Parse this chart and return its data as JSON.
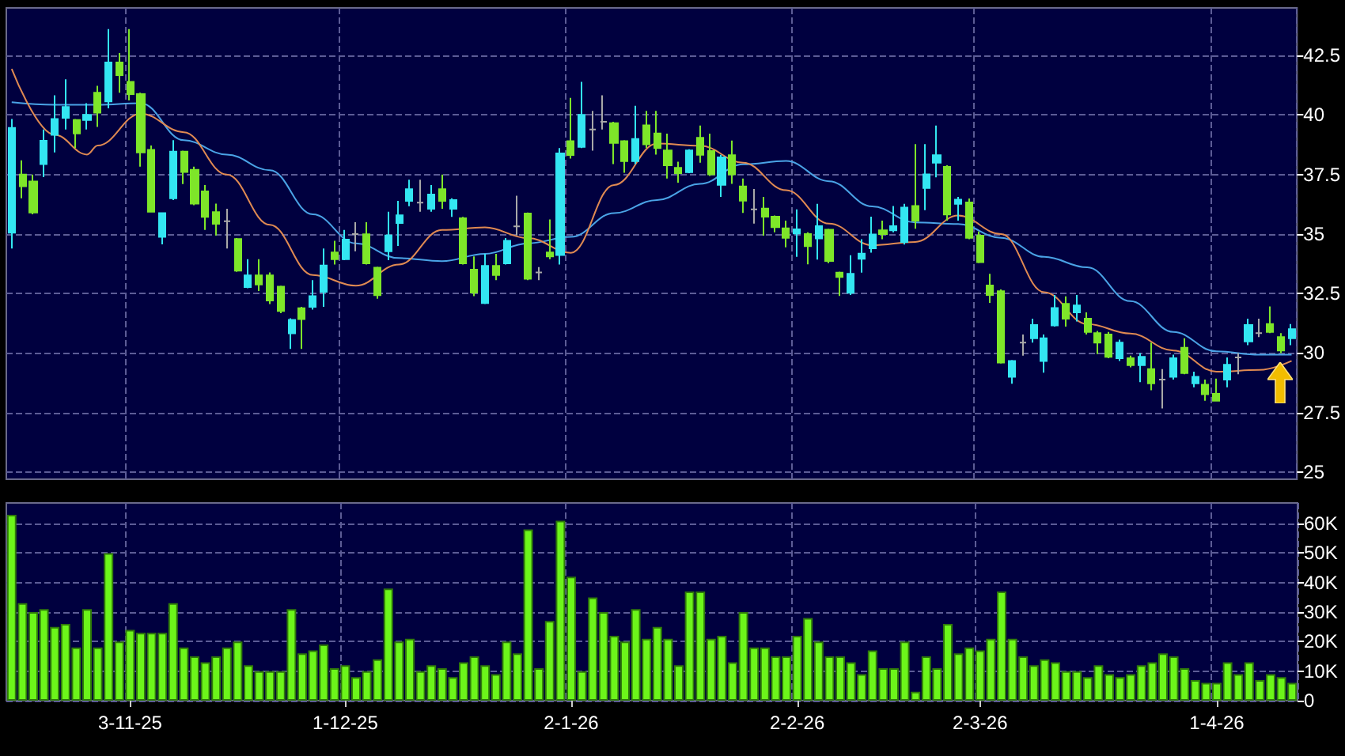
{
  "chart_data": [
    {
      "type": "candlestick",
      "tick_labels": "y",
      "grid": true,
      "categories": [
        null,
        null,
        null,
        null,
        null,
        null,
        null,
        null,
        null,
        null,
        null,
        null,
        null,
        null,
        null,
        null,
        null,
        null,
        null,
        null,
        null,
        null,
        null,
        null,
        null,
        null,
        null,
        null,
        null,
        null,
        null,
        null,
        null,
        null,
        null,
        null,
        null,
        null,
        null,
        null,
        null,
        null,
        null,
        null,
        null,
        null,
        null,
        null,
        null,
        null,
        null,
        null,
        null,
        null,
        null,
        null,
        null,
        null,
        null,
        null,
        null,
        null,
        null,
        null,
        null,
        null,
        null,
        null,
        null,
        null,
        null,
        null,
        null,
        null,
        null,
        null,
        null,
        null,
        null,
        null,
        null,
        null,
        null,
        null,
        null,
        null,
        null,
        null,
        null,
        null,
        null,
        null,
        null,
        null,
        null,
        null,
        null,
        null,
        null,
        null,
        null,
        null,
        null,
        null,
        null,
        null,
        null,
        null,
        null,
        null,
        null,
        null,
        null,
        null,
        null,
        null,
        null,
        null,
        null,
        null
      ],
      "ylim": [
        24.7,
        44.5
      ],
      "yticks": [
        25,
        27.5,
        30,
        32.5,
        35,
        37.5,
        40,
        42.5
      ],
      "series": [
        {
          "type": "line",
          "color": "#4aa3e6",
          "values": [
            40.54,
            null,
            null,
            null,
            40.43,
            null,
            null,
            null,
            40.43,
            null,
            null,
            null,
            40.5,
            null,
            null,
            null,
            38.94,
            null,
            null,
            null,
            38.34,
            null,
            null,
            null,
            37.68,
            null,
            null,
            null,
            35.83,
            null,
            null,
            null,
            34.61,
            null,
            null,
            null,
            33.99,
            null,
            null,
            null,
            33.86,
            null,
            null,
            null,
            34.17,
            null,
            null,
            null,
            34.61,
            null,
            null,
            null,
            34.88,
            null,
            null,
            null,
            35.88,
            null,
            null,
            null,
            36.43,
            null,
            null,
            null,
            37.11,
            null,
            null,
            null,
            37.93,
            null,
            null,
            null,
            38.07,
            null,
            null,
            null,
            37.22,
            null,
            null,
            null,
            36.16,
            null,
            null,
            null,
            35.49,
            null,
            null,
            null,
            35.42,
            null,
            null,
            null,
            34.84,
            null,
            null,
            null,
            34.04,
            null,
            null,
            null,
            33.6,
            null,
            null,
            null,
            32.18,
            null,
            null,
            null,
            30.89,
            null,
            null,
            null,
            30.07,
            null,
            null,
            null,
            29.93,
            null,
            null,
            29.93
          ]
        },
        {
          "type": "line",
          "color": "#e08a52",
          "values": [
            41.94,
            null,
            null,
            null,
            39.17,
            null,
            null,
            38.34,
            38.72,
            null,
            null,
            null,
            40.06,
            null,
            null,
            null,
            39.28,
            null,
            null,
            null,
            37.5,
            null,
            null,
            null,
            35.39,
            null,
            null,
            null,
            33.28,
            null,
            null,
            null,
            32.83,
            null,
            null,
            null,
            33.72,
            null,
            null,
            null,
            35.17,
            null,
            null,
            null,
            35.28,
            null,
            null,
            null,
            34.83,
            null,
            null,
            null,
            34.21,
            null,
            null,
            null,
            37.06,
            null,
            null,
            null,
            38.8,
            null,
            null,
            null,
            38.71,
            null,
            null,
            null,
            38.0,
            null,
            null,
            null,
            36.84,
            null,
            null,
            null,
            35.44,
            null,
            null,
            null,
            34.53,
            null,
            null,
            null,
            34.67,
            null,
            null,
            null,
            35.78,
            null,
            null,
            null,
            35.0,
            null,
            null,
            null,
            32.56,
            null,
            null,
            null,
            31.22,
            null,
            null,
            null,
            30.82,
            null,
            null,
            null,
            30.11,
            null,
            null,
            null,
            29.22,
            null,
            null,
            null,
            29.29,
            null,
            null,
            29.67
          ]
        },
        {
          "ohlc": [
            [
              35.06,
              39.83,
              34.39,
              39.46
            ],
            [
              37.5,
              38.1,
              36.5,
              37.01
            ],
            [
              37.21,
              37.5,
              35.83,
              35.9
            ],
            [
              37.94,
              39.39,
              37.39,
              38.92
            ],
            [
              39.17,
              40.83,
              38.43,
              39.83
            ],
            [
              39.88,
              41.5,
              39.39,
              40.34
            ],
            [
              39.79,
              39.83,
              38.61,
              39.23
            ],
            [
              39.79,
              40.5,
              39.39,
              40.01
            ],
            [
              40.94,
              41.23,
              39.5,
              40.1
            ],
            [
              40.57,
              43.61,
              40.28,
              42.21
            ],
            [
              42.21,
              42.61,
              40.94,
              41.68
            ],
            [
              41.39,
              43.61,
              40.61,
              40.88
            ],
            [
              40.88,
              40.94,
              37.83,
              38.43
            ],
            [
              38.54,
              38.72,
              35.9,
              35.94
            ],
            [
              34.88,
              35.88,
              34.57,
              35.88
            ],
            [
              36.5,
              38.94,
              36.43,
              38.46
            ],
            [
              38.46,
              38.5,
              37.1,
              37.61
            ],
            [
              37.7,
              37.83,
              36.21,
              36.28
            ],
            [
              36.79,
              37.06,
              35.17,
              35.72
            ],
            [
              35.92,
              36.28,
              34.94,
              35.43
            ],
            [
              35.54,
              36.06,
              34.39,
              35.54
            ],
            [
              34.79,
              34.83,
              33.41,
              33.46
            ],
            [
              32.77,
              33.94,
              32.72,
              33.26
            ],
            [
              33.26,
              33.94,
              32.61,
              32.88
            ],
            [
              33.26,
              33.39,
              32.06,
              32.21
            ],
            [
              32.79,
              32.83,
              31.68,
              31.77
            ],
            [
              30.83,
              31.46,
              30.17,
              31.39
            ],
            [
              31.88,
              31.94,
              30.17,
              31.43
            ],
            [
              31.94,
              33.06,
              31.83,
              32.39
            ],
            [
              32.57,
              34.39,
              31.94,
              33.68
            ],
            [
              34.23,
              34.72,
              33.72,
              33.94
            ],
            [
              33.94,
              35.17,
              33.9,
              34.77
            ],
            [
              35.0,
              35.5,
              34.28,
              35.0
            ],
            [
              34.99,
              35.5,
              33.72,
              33.77
            ],
            [
              33.59,
              33.63,
              32.28,
              32.43
            ],
            [
              34.28,
              35.94,
              33.9,
              34.94
            ],
            [
              35.46,
              36.39,
              34.5,
              35.79
            ],
            [
              36.39,
              37.28,
              36.17,
              36.88
            ],
            [
              36.32,
              37.28,
              35.94,
              36.32
            ],
            [
              36.06,
              37.06,
              35.94,
              36.66
            ],
            [
              36.88,
              37.5,
              36.06,
              36.39
            ],
            [
              36.06,
              36.5,
              35.72,
              36.43
            ],
            [
              35.66,
              35.72,
              33.72,
              33.77
            ],
            [
              33.5,
              34.06,
              32.39,
              32.54
            ],
            [
              32.1,
              34.17,
              32.06,
              33.66
            ],
            [
              33.66,
              34.17,
              33.06,
              33.28
            ],
            [
              33.77,
              34.83,
              33.72,
              34.72
            ],
            [
              35.32,
              36.61,
              34.94,
              35.32
            ],
            [
              35.86,
              35.9,
              33.06,
              33.12
            ],
            [
              33.39,
              33.61,
              33.06,
              33.39
            ],
            [
              34.23,
              35.61,
              33.94,
              34.06
            ],
            [
              34.12,
              38.61,
              33.72,
              38.39
            ],
            [
              38.9,
              40.72,
              38.17,
              38.32
            ],
            [
              38.66,
              41.39,
              38.61,
              40.01
            ],
            [
              39.39,
              40.17,
              38.5,
              39.39
            ],
            [
              39.72,
              40.83,
              39.39,
              39.72
            ],
            [
              39.66,
              39.72,
              37.94,
              38.83
            ],
            [
              38.9,
              38.94,
              37.57,
              38.06
            ],
            [
              38.06,
              40.39,
              37.94,
              38.99
            ],
            [
              39.57,
              40.17,
              38.61,
              38.77
            ],
            [
              39.23,
              40.17,
              38.34,
              38.61
            ],
            [
              38.51,
              39.22,
              37.33,
              37.89
            ],
            [
              37.78,
              38.04,
              37.16,
              37.56
            ],
            [
              37.6,
              38.56,
              37.56,
              38.51
            ],
            [
              39.04,
              39.56,
              38.0,
              38.33
            ],
            [
              38.49,
              39.22,
              37.44,
              37.51
            ],
            [
              37.07,
              38.33,
              36.56,
              38.22
            ],
            [
              38.31,
              38.93,
              37.11,
              37.51
            ],
            [
              37.0,
              37.33,
              35.89,
              36.4
            ],
            [
              36.04,
              36.89,
              35.44,
              36.04
            ],
            [
              36.07,
              36.56,
              34.93,
              35.73
            ],
            [
              35.73,
              35.78,
              35.07,
              35.29
            ],
            [
              35.24,
              35.56,
              34.44,
              34.84
            ],
            [
              35.02,
              36.04,
              34.04,
              35.2
            ],
            [
              35.0,
              35.07,
              33.73,
              34.49
            ],
            [
              34.82,
              36.27,
              33.93,
              35.33
            ],
            [
              35.18,
              35.22,
              33.78,
              33.87
            ],
            [
              33.38,
              33.42,
              32.4,
              33.2
            ],
            [
              32.53,
              34.11,
              32.44,
              33.33
            ],
            [
              33.96,
              34.78,
              33.38,
              34.18
            ],
            [
              34.4,
              35.73,
              34.22,
              34.98
            ],
            [
              35.16,
              35.56,
              34.78,
              35.0
            ],
            [
              35.16,
              36.18,
              35.07,
              35.33
            ],
            [
              34.67,
              36.27,
              34.56,
              36.11
            ],
            [
              36.18,
              38.78,
              35.22,
              35.56
            ],
            [
              36.93,
              38.78,
              36.0,
              37.51
            ],
            [
              38.0,
              39.56,
              37.38,
              38.31
            ],
            [
              37.82,
              37.89,
              35.56,
              35.82
            ],
            [
              36.27,
              36.56,
              35.56,
              36.44
            ],
            [
              36.33,
              36.49,
              34.78,
              34.84
            ],
            [
              34.93,
              35.11,
              33.78,
              33.82
            ],
            [
              32.84,
              33.33,
              32.11,
              32.44
            ],
            [
              32.6,
              32.67,
              29.56,
              29.6
            ],
            [
              29.0,
              29.71,
              28.71,
              29.67
            ],
            [
              30.44,
              30.78,
              29.89,
              30.44
            ],
            [
              30.62,
              31.44,
              30.44,
              31.18
            ],
            [
              29.67,
              30.78,
              29.18,
              30.62
            ],
            [
              31.16,
              32.44,
              31.11,
              31.89
            ],
            [
              32.07,
              32.38,
              31.11,
              31.44
            ],
            [
              31.71,
              32.44,
              31.33,
              32.0
            ],
            [
              31.44,
              31.71,
              30.78,
              30.89
            ],
            [
              30.84,
              30.93,
              29.96,
              30.44
            ],
            [
              30.78,
              30.89,
              29.78,
              29.84
            ],
            [
              29.78,
              30.56,
              29.67,
              30.44
            ],
            [
              29.78,
              29.89,
              29.4,
              29.49
            ],
            [
              29.49,
              30.0,
              28.78,
              29.84
            ],
            [
              29.33,
              30.44,
              28.44,
              28.73
            ],
            [
              28.89,
              29.33,
              27.67,
              28.89
            ],
            [
              29.0,
              29.93,
              28.89,
              29.78
            ],
            [
              30.22,
              30.62,
              29.11,
              29.16
            ],
            [
              28.73,
              29.22,
              28.56,
              29.0
            ],
            [
              28.67,
              28.89,
              28.0,
              28.27
            ],
            [
              28.29,
              28.93,
              27.96,
              28.0
            ],
            [
              28.89,
              29.82,
              28.56,
              29.51
            ],
            [
              29.82,
              30.0,
              29.11,
              29.82
            ],
            [
              30.49,
              31.44,
              30.33,
              31.18
            ],
            [
              30.84,
              31.44,
              30.67,
              30.84
            ],
            [
              31.22,
              31.96,
              30.84,
              30.89
            ],
            [
              30.67,
              30.84,
              30.0,
              30.11
            ],
            [
              30.62,
              31.22,
              30.33,
              31.0
            ]
          ],
          "colors": [
            "#33e6f2",
            "#7ee629",
            "#7ee629",
            "#33e6f2",
            "#33e6f2",
            "#33e6f2",
            "#7ee629",
            "#33e6f2",
            "#7ee629",
            "#33e6f2",
            "#7ee629",
            "#7ee629",
            "#7ee629",
            "#7ee629",
            "#33e6f2",
            "#33e6f2",
            "#7ee629",
            "#7ee629",
            "#7ee629",
            "#7ee629",
            "#a8a8a8",
            "#7ee629",
            "#33e6f2",
            "#7ee629",
            "#7ee629",
            "#7ee629",
            "#33e6f2",
            "#7ee629",
            "#33e6f2",
            "#33e6f2",
            "#7ee629",
            "#33e6f2",
            "#a8a8a8",
            "#7ee629",
            "#7ee629",
            "#33e6f2",
            "#33e6f2",
            "#33e6f2",
            "#a8a8a8",
            "#33e6f2",
            "#7ee629",
            "#33e6f2",
            "#7ee629",
            "#7ee629",
            "#33e6f2",
            "#7ee629",
            "#33e6f2",
            "#a8a8a8",
            "#7ee629",
            "#a8a8a8",
            "#7ee629",
            "#33e6f2",
            "#7ee629",
            "#33e6f2",
            "#a8a8a8",
            "#a8a8a8",
            "#7ee629",
            "#7ee629",
            "#33e6f2",
            "#7ee629",
            "#7ee629",
            "#7ee629",
            "#7ee629",
            "#33e6f2",
            "#7ee629",
            "#7ee629",
            "#33e6f2",
            "#7ee629",
            "#7ee629",
            "#a8a8a8",
            "#7ee629",
            "#7ee629",
            "#7ee629",
            "#33e6f2",
            "#7ee629",
            "#33e6f2",
            "#7ee629",
            "#7ee629",
            "#33e6f2",
            "#33e6f2",
            "#33e6f2",
            "#7ee629",
            "#33e6f2",
            "#33e6f2",
            "#7ee629",
            "#33e6f2",
            "#33e6f2",
            "#7ee629",
            "#33e6f2",
            "#7ee629",
            "#7ee629",
            "#7ee629",
            "#7ee629",
            "#33e6f2",
            "#a8a8a8",
            "#33e6f2",
            "#33e6f2",
            "#33e6f2",
            "#7ee629",
            "#33e6f2",
            "#7ee629",
            "#7ee629",
            "#7ee629",
            "#33e6f2",
            "#7ee629",
            "#33e6f2",
            "#7ee629",
            "#a8a8a8",
            "#33e6f2",
            "#7ee629",
            "#33e6f2",
            "#7ee629",
            "#7ee629",
            "#33e6f2",
            "#a8a8a8",
            "#33e6f2",
            "#a8a8a8",
            "#7ee629",
            "#7ee629",
            "#33e6f2"
          ]
        }
      ]
    },
    {
      "type": "bar",
      "grid": true,
      "color": "#6cf51a",
      "categories": [
        null,
        null,
        null,
        null,
        null,
        null,
        null,
        null,
        null,
        null,
        null,
        "3-11-25",
        null,
        null,
        null,
        null,
        null,
        null,
        null,
        null,
        null,
        null,
        null,
        null,
        null,
        null,
        null,
        null,
        null,
        null,
        null,
        "1-12-25",
        null,
        null,
        null,
        null,
        null,
        null,
        null,
        null,
        null,
        null,
        null,
        null,
        null,
        null,
        null,
        null,
        null,
        null,
        null,
        null,
        "2-1-26",
        null,
        null,
        null,
        null,
        null,
        null,
        null,
        null,
        null,
        null,
        null,
        null,
        null,
        null,
        null,
        null,
        null,
        null,
        null,
        null,
        "2-2-26",
        null,
        null,
        null,
        null,
        null,
        null,
        null,
        null,
        null,
        null,
        null,
        null,
        null,
        null,
        null,
        null,
        "2-3-26",
        null,
        null,
        null,
        null,
        null,
        null,
        null,
        null,
        null,
        null,
        null,
        null,
        null,
        null,
        null,
        null,
        null,
        null,
        null,
        null,
        null,
        "1-4-26",
        null,
        null,
        null,
        null,
        null,
        null,
        null
      ],
      "values": [
        63000,
        33000,
        30000,
        31000,
        25000,
        26000,
        18000,
        31000,
        18000,
        50000,
        20000,
        24000,
        23000,
        23000,
        23000,
        33000,
        18000,
        15000,
        13000,
        15000,
        18000,
        20000,
        12000,
        10000,
        10000,
        10000,
        31000,
        16000,
        17000,
        19000,
        11000,
        12000,
        8000,
        10000,
        14000,
        38000,
        20000,
        21000,
        10000,
        12000,
        11000,
        8000,
        13000,
        15000,
        12000,
        9000,
        20000,
        16000,
        58000,
        11000,
        27000,
        61000,
        42000,
        10000,
        35000,
        30000,
        22000,
        20000,
        31000,
        21000,
        25000,
        21000,
        12000,
        37000,
        37000,
        21000,
        22000,
        13000,
        30000,
        18000,
        18000,
        15000,
        15000,
        22000,
        28000,
        20000,
        15000,
        15000,
        13000,
        9000,
        17000,
        11000,
        11000,
        20000,
        3000,
        15000,
        11000,
        26000,
        16000,
        18000,
        17000,
        21000,
        37000,
        21000,
        15000,
        12000,
        14000,
        13000,
        10000,
        10000,
        8000,
        12000,
        9000,
        8000,
        9000,
        12000,
        13000,
        16000,
        15000,
        11000,
        7000,
        6000,
        6000,
        13000,
        9000,
        13000,
        7000,
        9000,
        8000,
        6000
      ],
      "ylim": [
        0,
        67000
      ],
      "yticks": [
        0,
        {
          "value": 10000,
          "label": "10K"
        },
        {
          "value": 20000,
          "label": "20K"
        },
        {
          "value": 30000,
          "label": "30K"
        },
        {
          "value": 40000,
          "label": "40K"
        },
        {
          "value": 50000,
          "label": "50K"
        },
        {
          "value": 60000,
          "label": "60K"
        }
      ]
    }
  ]
}
